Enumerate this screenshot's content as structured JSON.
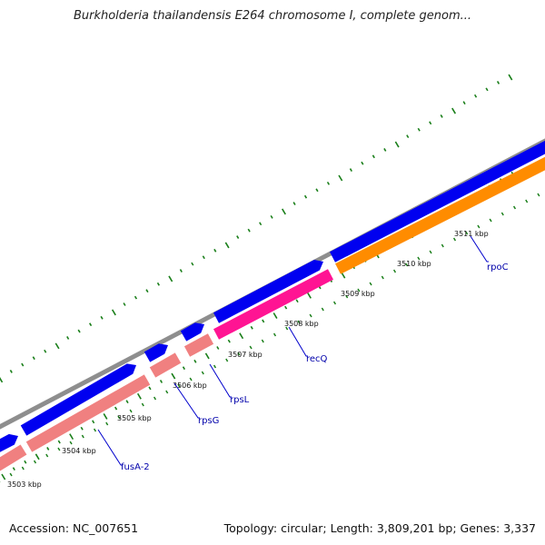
{
  "title": "Burkholderia thailandensis E264 chromosome I, complete genom...",
  "accession": "Accession: NC_007651",
  "summary": "Topology: circular; Length: 3,809,201 bp; Genes: 3,337",
  "colors": {
    "backbone": "#8e8e8e",
    "forward_cds": "#0000f0",
    "rrna_like": "#f08080",
    "recq": "#ff1493",
    "rpoc": "#ff8c00",
    "gc_skew_ticks": "#1a7f1a",
    "label_line": "#0000cc"
  },
  "scale_labels": [
    "3503 kbp",
    "3504 kbp",
    "3505 kbp",
    "3506 kbp",
    "3507 kbp",
    "3508 kbp",
    "3509 kbp",
    "3510 kbp",
    "3511 kbp"
  ],
  "genes": [
    {
      "name": "fusA-2"
    },
    {
      "name": "rpsG"
    },
    {
      "name": "rpsL"
    },
    {
      "name": "recQ"
    },
    {
      "name": "rpoC"
    }
  ]
}
